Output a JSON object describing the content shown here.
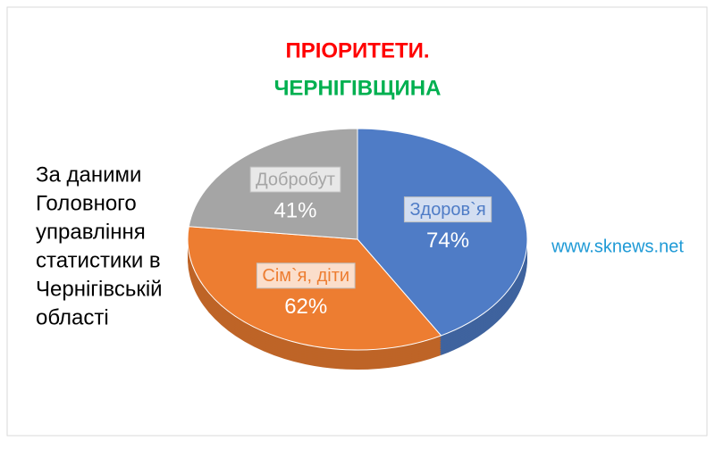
{
  "chart_data": {
    "type": "pie",
    "title": "ПРІОРИТЕТИ.",
    "subtitle": "ЧЕРНІГІВЩИНА",
    "annotation": [
      "За даними",
      "Головного",
      "управління",
      "статистики в",
      "Чернігівській",
      "області"
    ],
    "source": "www.sknews.net",
    "categories": [
      "Здоров`я",
      "Сім`я, діти",
      "Добробут"
    ],
    "values": [
      74,
      62,
      41
    ],
    "value_labels": [
      "74%",
      "62%",
      "41%"
    ],
    "colors": [
      "#4f7cc6",
      "#ed7d31",
      "#a5a5a5"
    ]
  }
}
